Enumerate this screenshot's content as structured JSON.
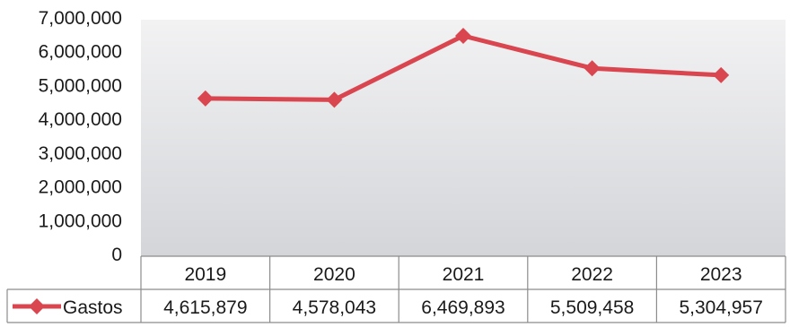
{
  "chart_data": {
    "type": "line",
    "categories": [
      "2019",
      "2020",
      "2021",
      "2022",
      "2023"
    ],
    "series": [
      {
        "name": "Gastos",
        "values": [
          4615879,
          4578043,
          6469893,
          5509458,
          5304957
        ],
        "color": "#d9464f"
      }
    ],
    "value_labels": [
      "4,615,879",
      "4,578,043",
      "6,469,893",
      "5,509,458",
      "5,304,957"
    ],
    "yticks": [
      "0",
      "1,000,000",
      "2,000,000",
      "3,000,000",
      "4,000,000",
      "5,000,000",
      "6,000,000",
      "7,000,000"
    ],
    "ylim": [
      0,
      7000000
    ],
    "grid": false,
    "legend": "data-table",
    "marker": "diamond"
  }
}
